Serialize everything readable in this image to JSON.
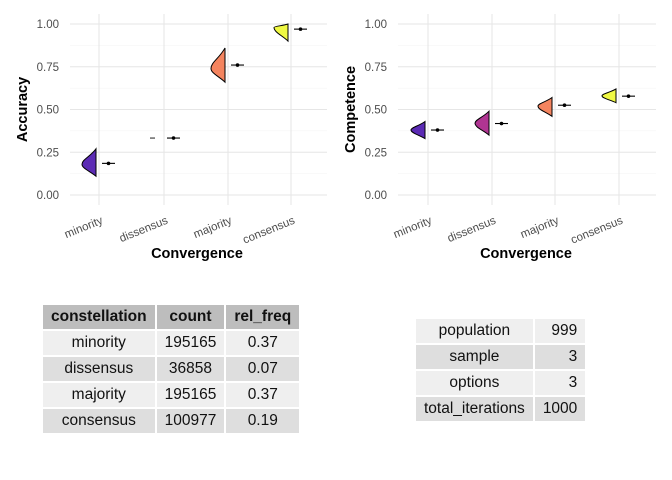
{
  "chart_data": [
    {
      "type": "violin",
      "xlabel": "Convergence",
      "ylabel": "Accuracy",
      "ylim": [
        0,
        1
      ],
      "yticks": [
        "0.00",
        "0.25",
        "0.50",
        "0.75",
        "1.00"
      ],
      "categories": [
        "minority",
        "dissensus",
        "majority",
        "consensus"
      ],
      "colors": [
        "#5b2ab4",
        "#8d2b8c",
        "#f4845f",
        "#f0f943"
      ],
      "means": [
        0.185,
        0.333,
        0.76,
        0.97
      ],
      "ranges": [
        [
          0.11,
          0.27
        ],
        [
          0.333,
          0.333
        ],
        [
          0.66,
          0.86
        ],
        [
          0.9,
          1.0
        ]
      ],
      "peaks": [
        0.18,
        0.333,
        0.74,
        0.98
      ]
    },
    {
      "type": "violin",
      "xlabel": "Convergence",
      "ylabel": "Competence",
      "ylim": [
        0,
        1
      ],
      "yticks": [
        "0.00",
        "0.25",
        "0.50",
        "0.75",
        "1.00"
      ],
      "categories": [
        "minority",
        "dissensus",
        "majority",
        "consensus"
      ],
      "colors": [
        "#5b2ab4",
        "#b03592",
        "#f4845f",
        "#f0f943"
      ],
      "means": [
        0.38,
        0.418,
        0.525,
        0.578
      ],
      "ranges": [
        [
          0.33,
          0.43
        ],
        [
          0.35,
          0.49
        ],
        [
          0.46,
          0.57
        ],
        [
          0.54,
          0.62
        ]
      ],
      "peaks": [
        0.38,
        0.42,
        0.52,
        0.58
      ]
    }
  ],
  "table1": {
    "headers": [
      "constellation",
      "count",
      "rel_freq"
    ],
    "rows": [
      [
        "minority",
        "195165",
        "0.37"
      ],
      [
        "dissensus",
        "36858",
        "0.07"
      ],
      [
        "majority",
        "195165",
        "0.37"
      ],
      [
        "consensus",
        "100977",
        "0.19"
      ]
    ]
  },
  "table2": {
    "rows": [
      [
        "population",
        "999"
      ],
      [
        "sample",
        "3"
      ],
      [
        "options",
        "3"
      ],
      [
        "total_iterations",
        "1000"
      ]
    ]
  }
}
